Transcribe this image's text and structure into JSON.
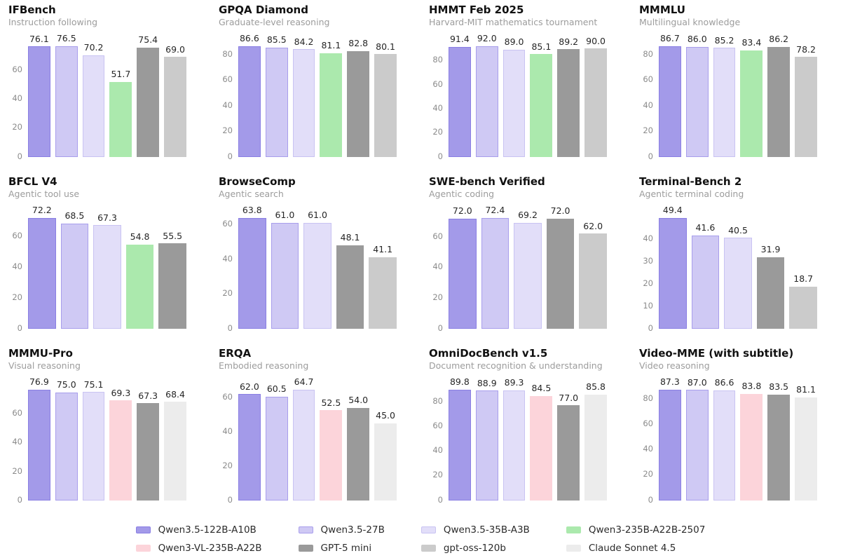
{
  "models": [
    {
      "name": "Qwen3.5-122B-A10B",
      "fill": "#a39ae9",
      "border": "#8a7fe3"
    },
    {
      "name": "Qwen3.5-27B",
      "fill": "#cfc9f4",
      "border": "#a89eec"
    },
    {
      "name": "Qwen3.5-35B-A3B",
      "fill": "#e2def9",
      "border": "#c9c3f2"
    },
    {
      "name": "Qwen3-235B-A22B-2507",
      "fill": "#abe9ad",
      "border": "#abe9ad"
    },
    {
      "name": "Qwen3-VL-235B-A22B",
      "fill": "#fcd4da",
      "border": "#fcd4da"
    },
    {
      "name": "GPT-5 mini",
      "fill": "#9a9a9a",
      "border": "#9a9a9a"
    },
    {
      "name": "gpt-oss-120b",
      "fill": "#cbcbcb",
      "border": "#cbcbcb"
    },
    {
      "name": "Claude Sonnet 4.5",
      "fill": "#ececec",
      "border": "#ececec"
    }
  ],
  "legend": {
    "rows": [
      [
        0,
        1,
        2,
        3
      ],
      [
        4,
        5,
        6,
        7
      ]
    ]
  },
  "chart_data": [
    {
      "type": "bar",
      "title": "IFBench",
      "subtitle": "Instruction following",
      "yticks": [
        0,
        20,
        40,
        60
      ],
      "grid": false,
      "series": [
        {
          "model": 0,
          "value": 76.1
        },
        {
          "model": 1,
          "value": 76.5
        },
        {
          "model": 2,
          "value": 70.2
        },
        {
          "model": 3,
          "value": 51.7
        },
        {
          "model": 5,
          "value": 75.4
        },
        {
          "model": 6,
          "value": 69.0
        }
      ]
    },
    {
      "type": "bar",
      "title": "GPQA Diamond",
      "subtitle": "Graduate-level reasoning",
      "yticks": [
        0,
        20,
        40,
        60,
        80
      ],
      "grid": false,
      "series": [
        {
          "model": 0,
          "value": 86.6
        },
        {
          "model": 1,
          "value": 85.5
        },
        {
          "model": 2,
          "value": 84.2
        },
        {
          "model": 3,
          "value": 81.1
        },
        {
          "model": 5,
          "value": 82.8
        },
        {
          "model": 6,
          "value": 80.1
        }
      ]
    },
    {
      "type": "bar",
      "title": "HMMT Feb 2025",
      "subtitle": "Harvard-MIT mathematics tournament",
      "yticks": [
        0,
        20,
        40,
        60,
        80
      ],
      "grid": false,
      "series": [
        {
          "model": 0,
          "value": 91.4
        },
        {
          "model": 1,
          "value": 92.0
        },
        {
          "model": 2,
          "value": 89.0
        },
        {
          "model": 3,
          "value": 85.1
        },
        {
          "model": 5,
          "value": 89.2
        },
        {
          "model": 6,
          "value": 90.0
        }
      ]
    },
    {
      "type": "bar",
      "title": "MMMLU",
      "subtitle": "Multilingual knowledge",
      "yticks": [
        0,
        20,
        40,
        60,
        80
      ],
      "grid": false,
      "series": [
        {
          "model": 0,
          "value": 86.7
        },
        {
          "model": 1,
          "value": 86.0
        },
        {
          "model": 2,
          "value": 85.2
        },
        {
          "model": 3,
          "value": 83.4
        },
        {
          "model": 5,
          "value": 86.2
        },
        {
          "model": 6,
          "value": 78.2
        }
      ]
    },
    {
      "type": "bar",
      "title": "BFCL V4",
      "subtitle": "Agentic tool use",
      "yticks": [
        0,
        20,
        40,
        60
      ],
      "grid": false,
      "series": [
        {
          "model": 0,
          "value": 72.2
        },
        {
          "model": 1,
          "value": 68.5
        },
        {
          "model": 2,
          "value": 67.3
        },
        {
          "model": 3,
          "value": 54.8
        },
        {
          "model": 5,
          "value": 55.5
        }
      ]
    },
    {
      "type": "bar",
      "title": "BrowseComp",
      "subtitle": "Agentic search",
      "yticks": [
        0,
        20,
        40,
        60
      ],
      "grid": false,
      "series": [
        {
          "model": 0,
          "value": 63.8
        },
        {
          "model": 1,
          "value": 61.0
        },
        {
          "model": 2,
          "value": 61.0
        },
        {
          "model": 5,
          "value": 48.1
        },
        {
          "model": 6,
          "value": 41.1
        }
      ]
    },
    {
      "type": "bar",
      "title": "SWE-bench Verified",
      "subtitle": "Agentic coding",
      "yticks": [
        0,
        20,
        40,
        60
      ],
      "grid": false,
      "series": [
        {
          "model": 0,
          "value": 72.0
        },
        {
          "model": 1,
          "value": 72.4
        },
        {
          "model": 2,
          "value": 69.2
        },
        {
          "model": 5,
          "value": 72.0
        },
        {
          "model": 6,
          "value": 62.0
        }
      ]
    },
    {
      "type": "bar",
      "title": "Terminal-Bench 2",
      "subtitle": "Agentic terminal coding",
      "yticks": [
        0,
        10,
        20,
        30,
        40
      ],
      "grid": false,
      "series": [
        {
          "model": 0,
          "value": 49.4
        },
        {
          "model": 1,
          "value": 41.6
        },
        {
          "model": 2,
          "value": 40.5
        },
        {
          "model": 5,
          "value": 31.9
        },
        {
          "model": 6,
          "value": 18.7
        }
      ]
    },
    {
      "type": "bar",
      "title": "MMMU-Pro",
      "subtitle": "Visual reasoning",
      "yticks": [
        0,
        20,
        40,
        60
      ],
      "grid": false,
      "series": [
        {
          "model": 0,
          "value": 76.9
        },
        {
          "model": 1,
          "value": 75.0
        },
        {
          "model": 2,
          "value": 75.1
        },
        {
          "model": 4,
          "value": 69.3
        },
        {
          "model": 5,
          "value": 67.3
        },
        {
          "model": 7,
          "value": 68.4
        }
      ]
    },
    {
      "type": "bar",
      "title": "ERQA",
      "subtitle": "Embodied reasoning",
      "yticks": [
        0,
        20,
        40,
        60
      ],
      "grid": false,
      "series": [
        {
          "model": 0,
          "value": 62.0
        },
        {
          "model": 1,
          "value": 60.5
        },
        {
          "model": 2,
          "value": 64.7
        },
        {
          "model": 4,
          "value": 52.5
        },
        {
          "model": 5,
          "value": 54.0
        },
        {
          "model": 7,
          "value": 45.0
        }
      ]
    },
    {
      "type": "bar",
      "title": "OmniDocBench v1.5",
      "subtitle": "Document recognition & understanding",
      "yticks": [
        0,
        20,
        40,
        60,
        80
      ],
      "grid": false,
      "series": [
        {
          "model": 0,
          "value": 89.8
        },
        {
          "model": 1,
          "value": 88.9
        },
        {
          "model": 2,
          "value": 89.3
        },
        {
          "model": 4,
          "value": 84.5
        },
        {
          "model": 5,
          "value": 77.0
        },
        {
          "model": 7,
          "value": 85.8
        }
      ]
    },
    {
      "type": "bar",
      "title": "Video-MME (with subtitle)",
      "subtitle": "Video reasoning",
      "yticks": [
        0,
        20,
        40,
        60,
        80
      ],
      "grid": false,
      "series": [
        {
          "model": 0,
          "value": 87.3
        },
        {
          "model": 1,
          "value": 87.0
        },
        {
          "model": 2,
          "value": 86.6
        },
        {
          "model": 4,
          "value": 83.8
        },
        {
          "model": 5,
          "value": 83.5
        },
        {
          "model": 7,
          "value": 81.1
        }
      ]
    }
  ]
}
